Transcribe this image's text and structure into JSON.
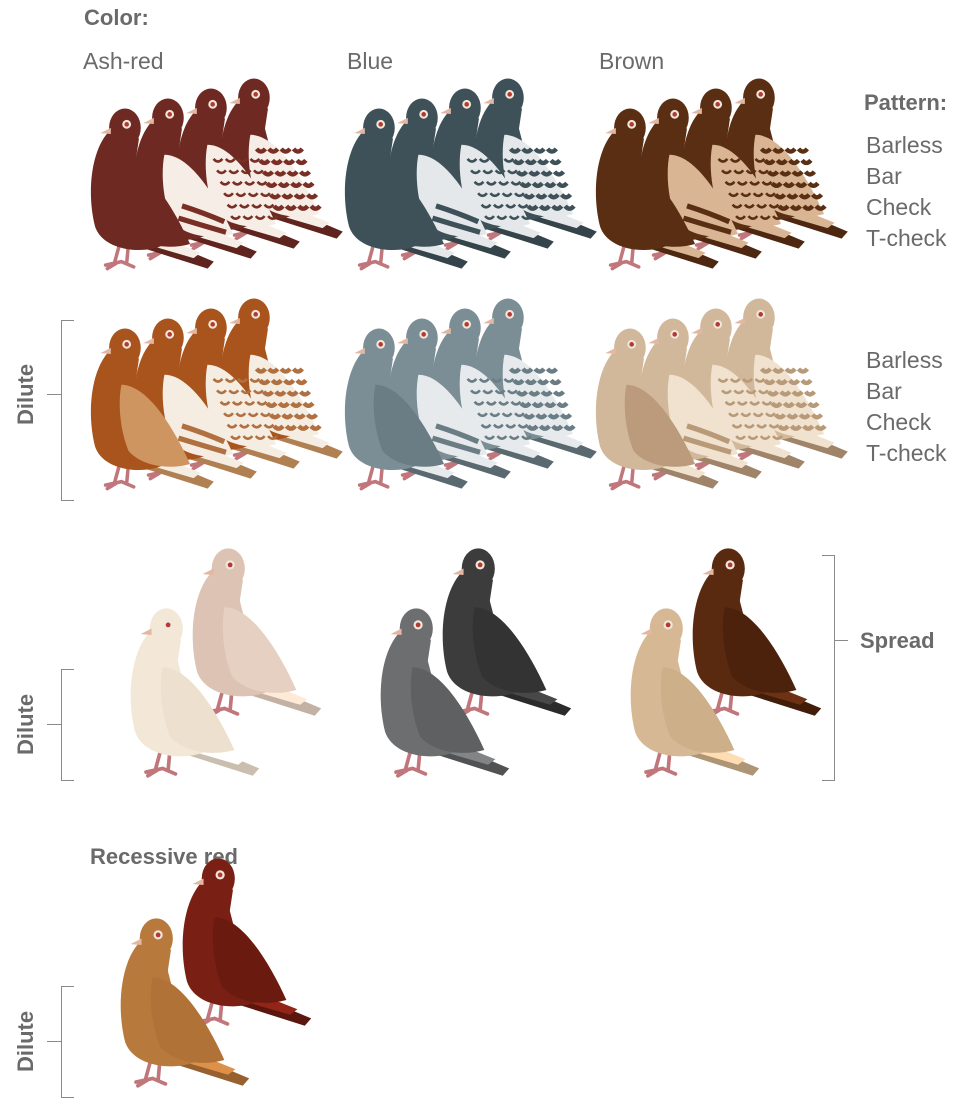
{
  "labels": {
    "color": "Color:",
    "pattern": "Pattern:",
    "spread": "Spread",
    "dilute": "Dilute",
    "recessive_red": "Recessive red"
  },
  "columns": [
    "Ash-red",
    "Blue",
    "Brown"
  ],
  "patterns": [
    "Barless",
    "Bar",
    "Check",
    "T-check"
  ],
  "palettes": {
    "ash_red": {
      "body": "#6e2a22",
      "wing": "#6e2a22",
      "light": "#f6eee6",
      "mark": "#7a2f25"
    },
    "blue": {
      "body": "#3e5058",
      "wing": "#3e5058",
      "light": "#e4e8ea",
      "mark": "#3e5058"
    },
    "brown": {
      "body": "#5a2e12",
      "wing": "#5a2e12",
      "light": "#d9b594",
      "mark": "#5a2e12"
    },
    "ash_red_dilute": {
      "body": "#a9541c",
      "wing": "#cf9560",
      "light": "#f5ece2",
      "mark": "#b07040"
    },
    "blue_dilute": {
      "body": "#7b8d95",
      "wing": "#6a7c84",
      "light": "#e6eaec",
      "mark": "#6a7c84"
    },
    "brown_dilute": {
      "body": "#d2b89a",
      "wing": "#bb9b7b",
      "light": "#f0e2cf",
      "mark": "#b89a78"
    },
    "spread_ash": {
      "body": "#ddc3b4",
      "wing": "#e6d0c2"
    },
    "spread_ash_d": {
      "body": "#f3e7d8",
      "wing": "#eee0ce"
    },
    "spread_blue": {
      "body": "#3c3c3c",
      "wing": "#333333"
    },
    "spread_blue_d": {
      "body": "#6d6e70",
      "wing": "#5f6062"
    },
    "spread_brown": {
      "body": "#5a2a10",
      "wing": "#4d220c"
    },
    "spread_brown_d": {
      "body": "#d6b894",
      "wing": "#cdaf8a"
    },
    "recessive": {
      "body": "#7a1f14",
      "wing": "#6b1a10"
    },
    "recessive_d": {
      "body": "#b8793c",
      "wing": "#b07236"
    }
  }
}
